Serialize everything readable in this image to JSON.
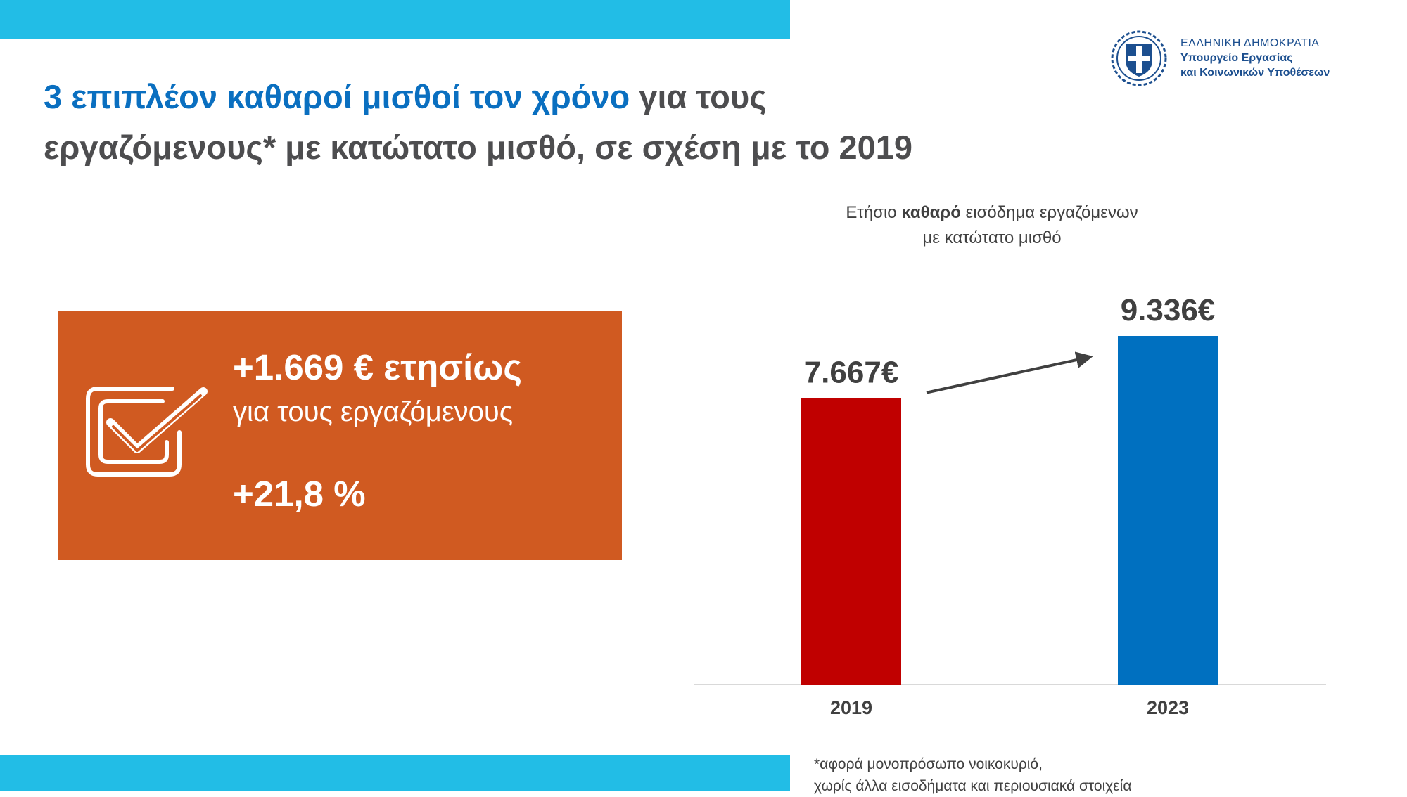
{
  "header": {
    "org_country": "ΕΛΛΗΝΙΚΗ ΔΗΜΟΚΡΑΤΙΑ",
    "org_ministry_line1": "Υπουργείο Εργασίας",
    "org_ministry_line2": "και Κοινωνικών Υποθέσεων"
  },
  "title": {
    "highlight": "3 επιπλέον καθαροί μισθοί τον χρόνο",
    "rest_line1": " για τους",
    "line2": "εργαζόμενους* με κατώτατο μισθό, σε σχέση με το 2019"
  },
  "stat_box": {
    "main": "+1.669 € ετησίως",
    "sub": "για τους εργαζόμενους",
    "pct": "+21,8 %"
  },
  "chart_title": {
    "prefix": "Ετήσιο ",
    "bold": "καθαρό",
    "suffix": " εισόδημα εργαζόμενων",
    "line2": "με κατώτατο μισθό"
  },
  "chart_data": {
    "type": "bar",
    "categories": [
      "2019",
      "2023"
    ],
    "values": [
      7667,
      9336
    ],
    "data_labels": [
      "7.667€",
      "9.336€"
    ],
    "colors": [
      "#c00000",
      "#0070c0"
    ],
    "title": "Ετήσιο καθαρό εισόδημα εργαζόμενων με κατώτατο μισθό",
    "xlabel": "",
    "ylabel": "",
    "ylim": [
      0,
      9336
    ],
    "grid": false,
    "legend": "none",
    "annotation": "arrow-up-right"
  },
  "footnote": {
    "line1": "*αφορά μονοπρόσωπο νοικοκυριό,",
    "line2": "χωρίς άλλα εισοδήματα και περιουσιακά στοιχεία"
  },
  "colors": {
    "band": "#22bde6",
    "title_highlight": "#0a6fc0",
    "title_text": "#4d4d4f",
    "stat_box": "#d05a21",
    "org_text": "#1c4f8f"
  },
  "icons": [
    "greek-coat-of-arms-icon",
    "checkbox-check-icon",
    "arrow-up-right-icon"
  ]
}
